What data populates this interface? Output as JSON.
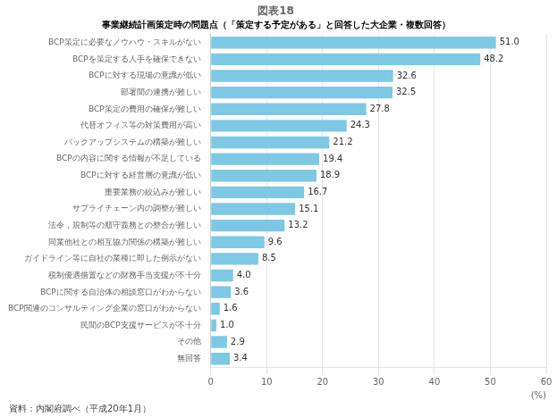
{
  "chart_data": {
    "type": "bar",
    "orientation": "horizontal",
    "title": "図表18",
    "subtitle": "事業継続計画策定時の問題点（「策定する予定がある」と回答した大企業・複数回答）",
    "xlabel": "(%)",
    "annotations": [
      "資料：内閣府調べ（平成20年1月）"
    ],
    "categories": [
      "BCP策定に必要なノウハウ・スキルがない",
      "BCPを策定する人手を確保できない",
      "BCPに対する現場の意識が低い",
      "部署間の連携が難しい",
      "BCP策定の費用の確保が難しい",
      "代替オフィス等の対策費用が高い",
      "バックアップシステムの構築が難しい",
      "BCPの内容に関する情報が不足している",
      "BCPに対する経営層の意識が低い",
      "重要業務の絞込みが難しい",
      "サプライチェーン内の調整が難しい",
      "法令，規制等の順守義務との整合が難しい",
      "同業他社との相互協力関係の構築が難しい",
      "ガイドライン等に自社の業種に即した例示がない",
      "税制優遇措置などの財務手当支援が不十分",
      "BCPに関する自治体の相談窓口がわからない",
      "BCP関連のコンサルティング企業の窓口がわからない",
      "民間のBCP支援サービスが不十分",
      "その他",
      "無回答"
    ],
    "values": [
      51.0,
      48.2,
      32.6,
      32.5,
      27.8,
      24.3,
      21.2,
      19.4,
      18.9,
      16.7,
      15.1,
      13.2,
      9.6,
      8.5,
      4.0,
      3.6,
      1.6,
      1.0,
      2.9,
      3.4
    ],
    "value_labels": [
      "51.0",
      "48.2",
      "32.6",
      "32.5",
      "27.8",
      "24.3",
      "21.2",
      "19.4",
      "18.9",
      "16.7",
      "15.1",
      "13.2",
      "9.6",
      "8.5",
      "4.0",
      "3.6",
      "1.6",
      "1.0",
      "2.9",
      "3.4"
    ],
    "data_labels": true,
    "color": "#7EC8E3",
    "xlim": [
      0,
      60
    ],
    "xticks": [
      0,
      10,
      20,
      30,
      40,
      50,
      60
    ],
    "grid": true
  }
}
